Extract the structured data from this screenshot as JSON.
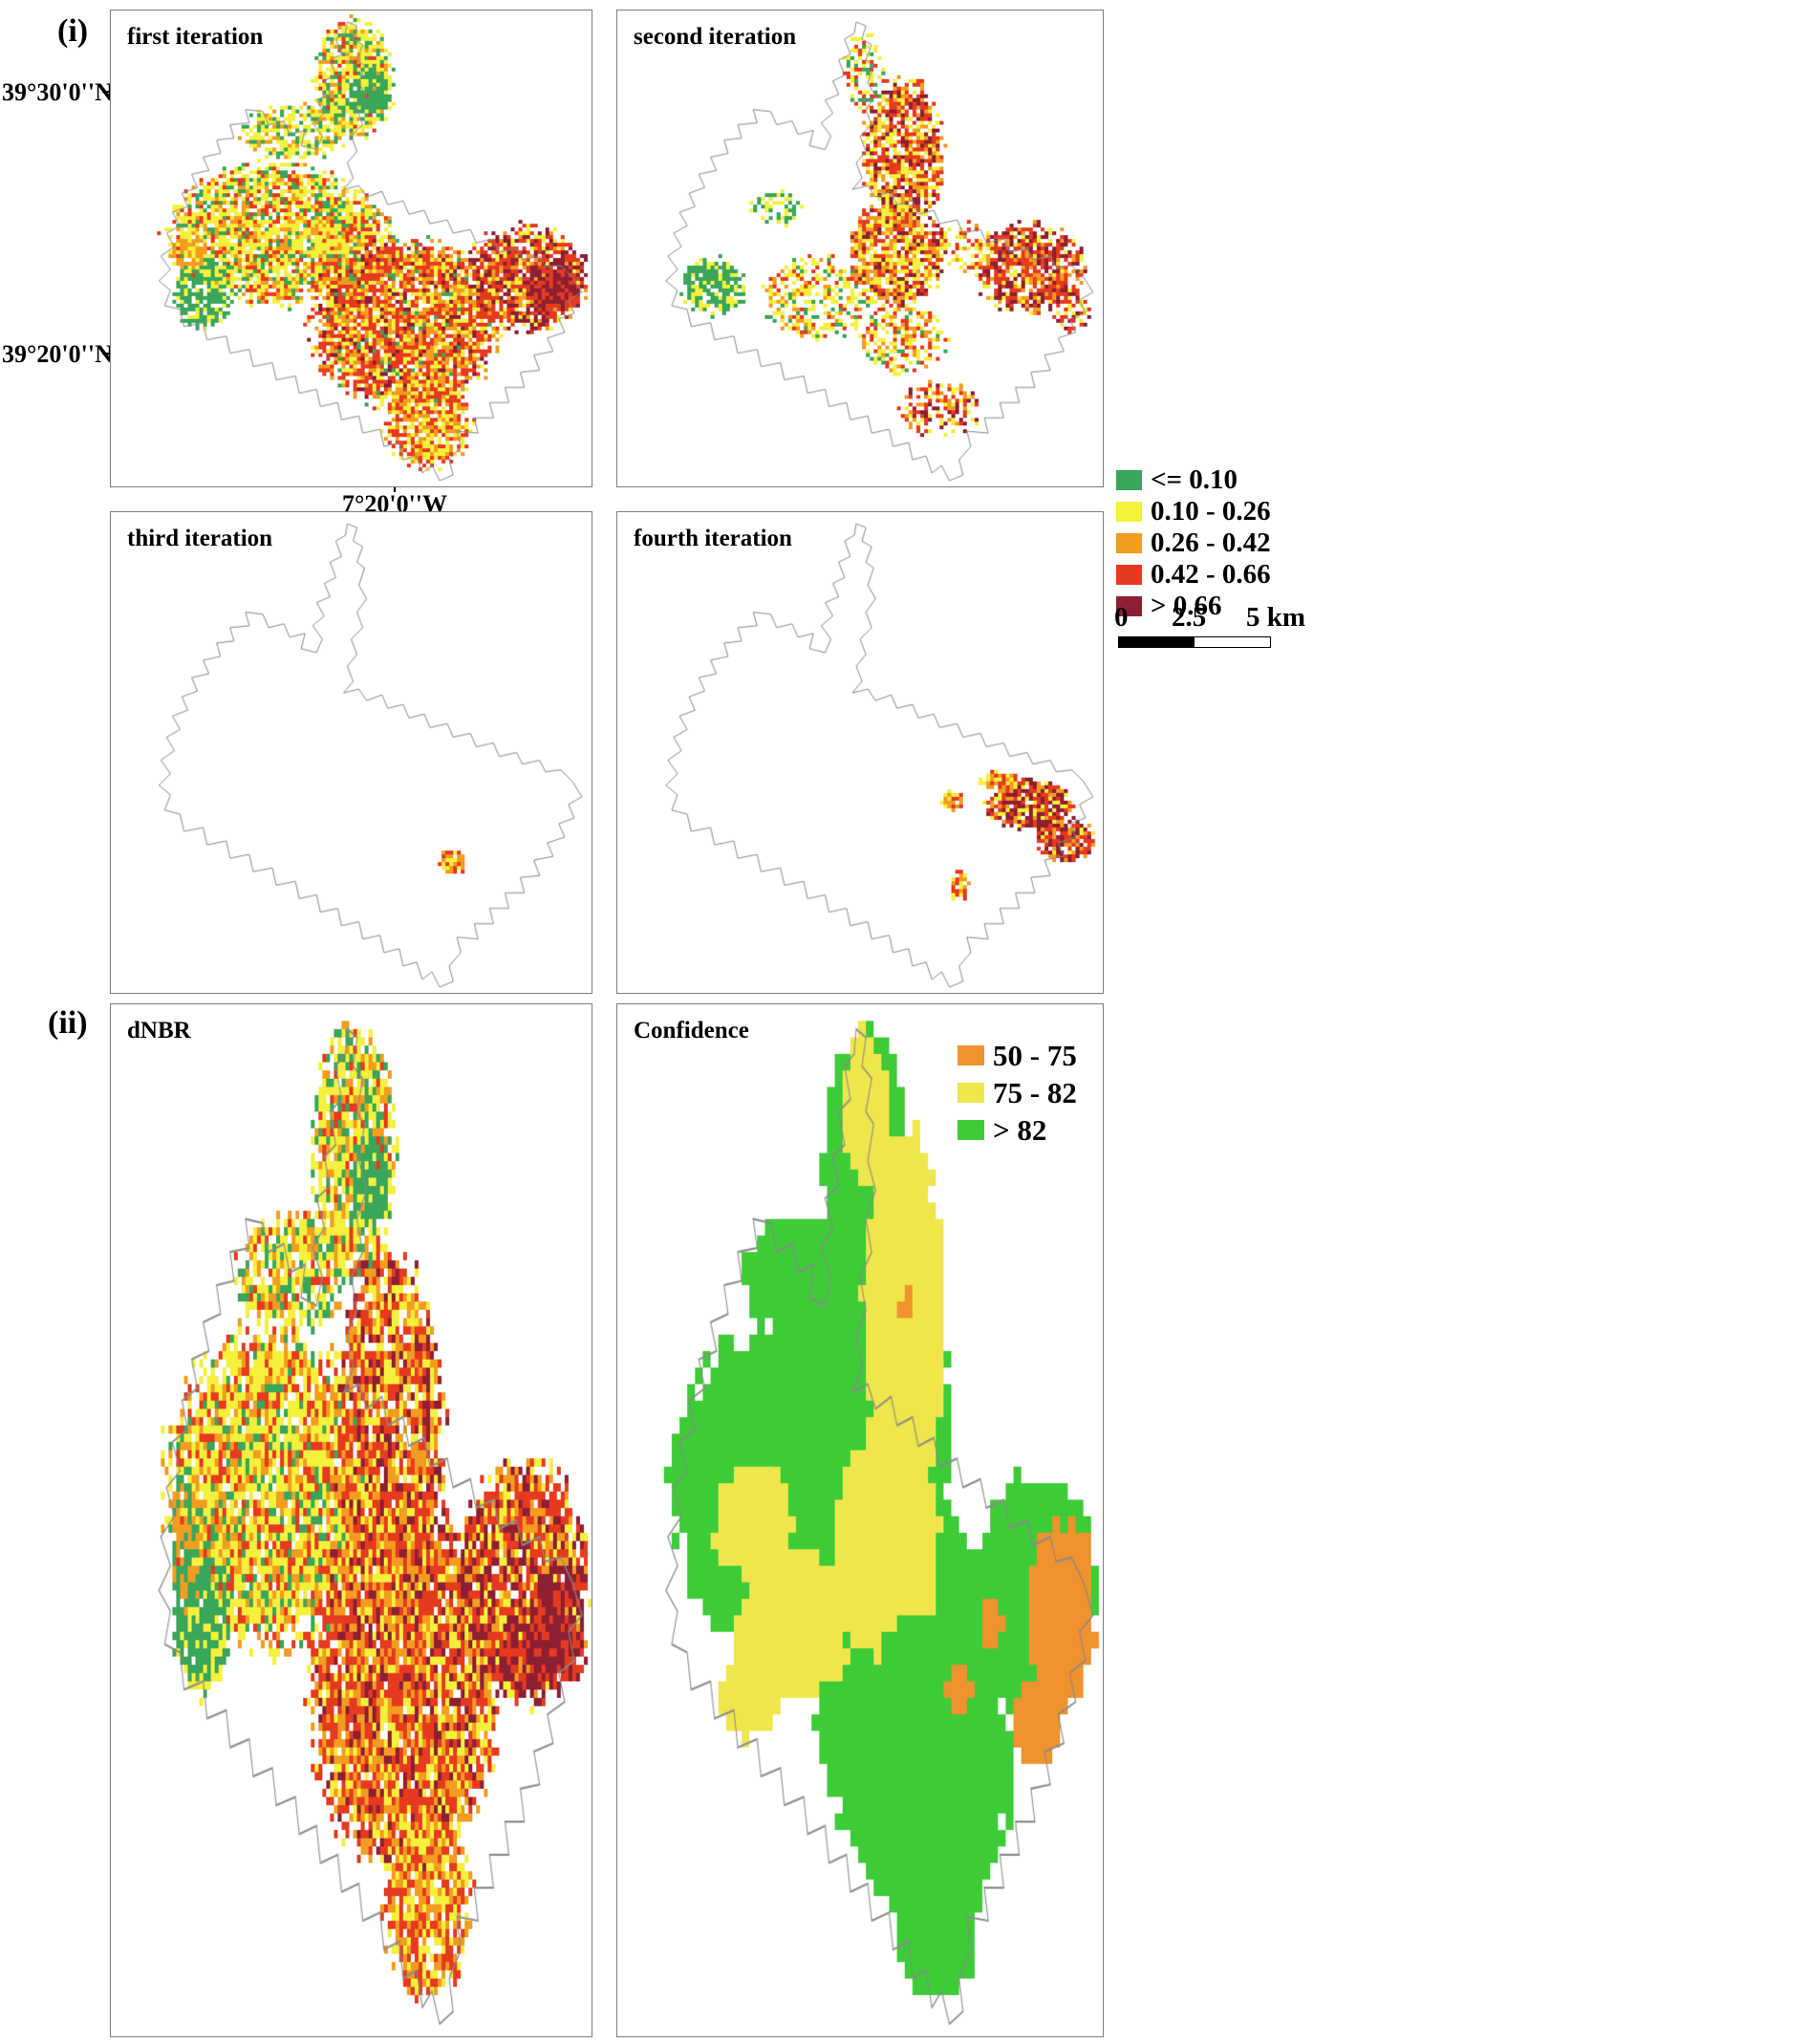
{
  "figure": {
    "group_labels": {
      "i": "(i)",
      "ii": "(ii)"
    },
    "axis_labels": {
      "lat_top": "39°30'0''N",
      "lat_bottom": "39°20'0''N",
      "lon_bottom": "7°20'0''W"
    },
    "panels": [
      {
        "id": "first-iteration",
        "title": "first iteration"
      },
      {
        "id": "second-iteration",
        "title": "second iteration"
      },
      {
        "id": "third-iteration",
        "title": "third iteration"
      },
      {
        "id": "fourth-iteration",
        "title": "fourth iteration"
      },
      {
        "id": "dnbr",
        "title": "dNBR"
      },
      {
        "id": "confidence",
        "title": "Confidence"
      }
    ],
    "legend_dnbr": {
      "items": [
        {
          "label": "<= 0.10",
          "color": "#3aa65a"
        },
        {
          "label": "0.10 - 0.26",
          "color": "#f4f03c"
        },
        {
          "label": "0.26 - 0.42",
          "color": "#f39c1f"
        },
        {
          "label": "0.42 - 0.66",
          "color": "#e63a1f"
        },
        {
          "label": "> 0.66",
          "color": "#8e1f33"
        }
      ]
    },
    "legend_confidence": {
      "items": [
        {
          "label": "50 - 75",
          "color": "#f0922d"
        },
        {
          "label": "75 - 82",
          "color": "#efe64b"
        },
        {
          "label": "> 82",
          "color": "#3dcc38"
        }
      ]
    },
    "scalebar": {
      "zero": "0",
      "mid": "2.5",
      "end": "5 km"
    }
  }
}
